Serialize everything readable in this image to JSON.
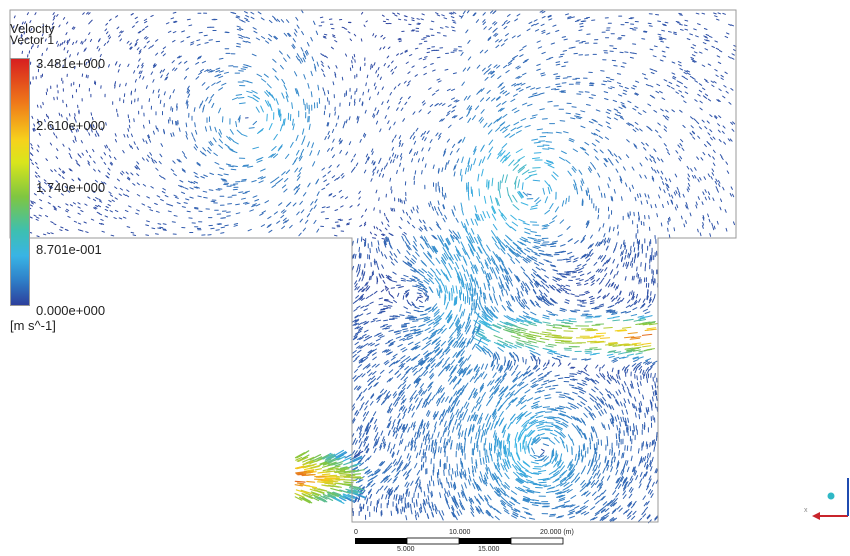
{
  "legend": {
    "title": "Velocity",
    "subtitle": "Vector 1",
    "unit": "[m s^-1]",
    "ticks": [
      "3.481e+000",
      "2.610e+000",
      "1.740e+000",
      "8.701e-001",
      "0.000e+000"
    ]
  },
  "scale_bar": {
    "top_labels": [
      "0",
      "10.000",
      "20.000  (m)"
    ],
    "bottom_labels": [
      "5.000",
      "15.000"
    ]
  },
  "colors": {
    "min": "#2d3f9c",
    "low": "#39b4e5",
    "mid": "#7fc641",
    "high": "#f6d21c",
    "max": "#d71f1f"
  },
  "axis_triad": {
    "icons": [
      "x-axis-arrow",
      "y-axis-arrow",
      "z-axis-dot"
    ]
  }
}
